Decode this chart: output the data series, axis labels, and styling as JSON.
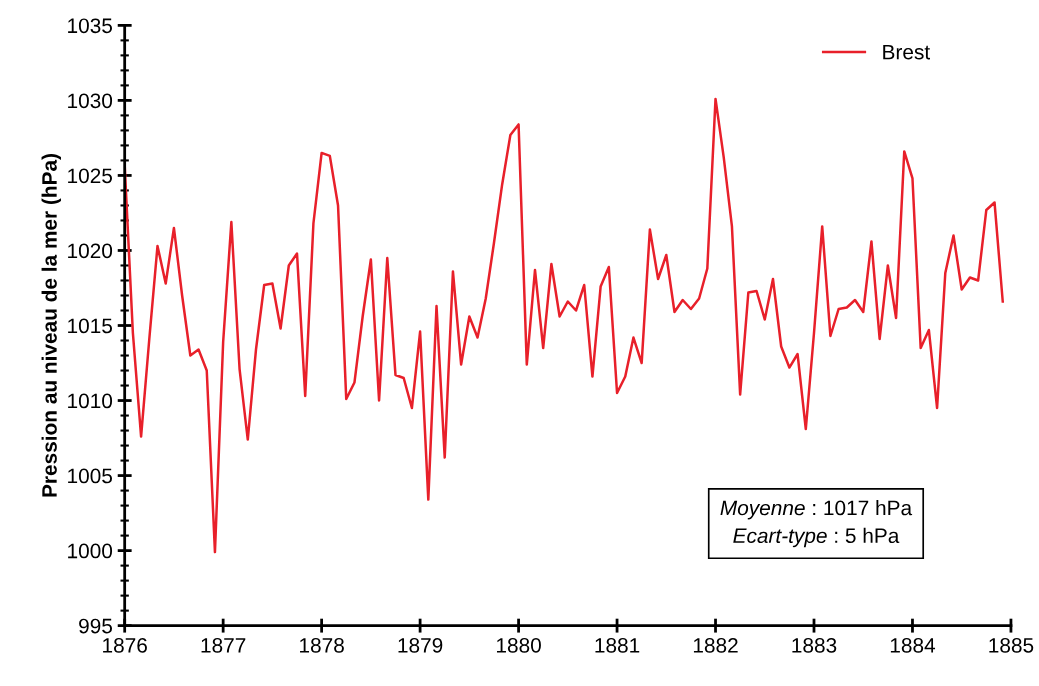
{
  "chart_data": {
    "type": "line",
    "ylabel": "Pression au niveau de la mer (hPa)",
    "x": [
      "1876-01",
      "1876-02",
      "1876-03",
      "1876-04",
      "1876-05",
      "1876-06",
      "1876-07",
      "1876-08",
      "1876-09",
      "1876-10",
      "1876-11",
      "1876-12",
      "1877-01",
      "1877-02",
      "1877-03",
      "1877-04",
      "1877-05",
      "1877-06",
      "1877-07",
      "1877-08",
      "1877-09",
      "1877-10",
      "1877-11",
      "1877-12",
      "1878-01",
      "1878-02",
      "1878-03",
      "1878-04",
      "1878-05",
      "1878-06",
      "1878-07",
      "1878-08",
      "1878-09",
      "1878-10",
      "1878-11",
      "1878-12",
      "1879-01",
      "1879-02",
      "1879-03",
      "1879-04",
      "1879-05",
      "1879-06",
      "1879-07",
      "1879-08",
      "1879-09",
      "1879-10",
      "1879-11",
      "1879-12",
      "1880-01",
      "1880-02",
      "1880-03",
      "1880-04",
      "1880-05",
      "1880-06",
      "1880-07",
      "1880-08",
      "1880-09",
      "1880-10",
      "1880-11",
      "1880-12",
      "1881-01",
      "1881-02",
      "1881-03",
      "1881-04",
      "1881-05",
      "1881-06",
      "1881-07",
      "1881-08",
      "1881-09",
      "1881-10",
      "1881-11",
      "1881-12",
      "1882-01",
      "1882-02",
      "1882-03",
      "1882-04",
      "1882-05",
      "1882-06",
      "1882-07",
      "1882-08",
      "1882-09",
      "1882-10",
      "1882-11",
      "1882-12",
      "1883-01",
      "1883-02",
      "1883-03",
      "1883-04",
      "1883-05",
      "1883-06",
      "1883-07",
      "1883-08",
      "1883-09",
      "1883-10",
      "1883-11",
      "1883-12",
      "1884-01",
      "1884-02",
      "1884-03",
      "1884-04",
      "1884-05",
      "1884-06",
      "1884-07",
      "1884-08",
      "1884-09",
      "1884-10",
      "1884-11",
      "1884-12"
    ],
    "series": [
      {
        "name": "Brest",
        "color": "#e8202a",
        "values": [
          1025.7,
          1014.5,
          1007.6,
          1014.1,
          1020.3,
          1017.8,
          1021.5,
          1017.0,
          1013.0,
          1013.4,
          1012.0,
          999.9,
          1013.9,
          1021.9,
          1012.1,
          1007.4,
          1013.4,
          1017.7,
          1017.8,
          1014.8,
          1019.0,
          1019.8,
          1010.3,
          1021.8,
          1026.5,
          1026.3,
          1023.0,
          1010.1,
          1011.2,
          1015.6,
          1019.4,
          1010.0,
          1019.5,
          1011.7,
          1011.5,
          1009.5,
          1014.6,
          1003.4,
          1016.3,
          1006.2,
          1018.6,
          1012.4,
          1015.6,
          1014.2,
          1016.8,
          1020.5,
          1024.4,
          1027.7,
          1028.4,
          1012.4,
          1018.7,
          1013.5,
          1019.1,
          1015.6,
          1016.6,
          1016.0,
          1017.7,
          1011.6,
          1017.6,
          1018.9,
          1010.5,
          1011.6,
          1014.2,
          1012.5,
          1021.4,
          1018.1,
          1019.7,
          1015.9,
          1016.7,
          1016.1,
          1016.8,
          1018.8,
          1030.1,
          1026.2,
          1021.6,
          1010.4,
          1017.2,
          1017.3,
          1015.4,
          1018.1,
          1013.6,
          1012.2,
          1013.1,
          1008.1,
          1014.5,
          1021.6,
          1014.3,
          1016.1,
          1016.2,
          1016.7,
          1015.9,
          1020.6,
          1014.1,
          1019.0,
          1015.5,
          1026.6,
          1024.8,
          1013.5,
          1014.7,
          1009.5,
          1018.5,
          1021.0,
          1017.4,
          1018.2,
          1018.0,
          1022.7,
          1023.2,
          1016.6
        ]
      }
    ],
    "xlim": [
      "1876",
      "1885"
    ],
    "xticks": [
      "1876",
      "1877",
      "1878",
      "1879",
      "1880",
      "1881",
      "1882",
      "1883",
      "1884",
      "1885"
    ],
    "ylim": [
      995,
      1035
    ],
    "yticks": [
      995,
      1000,
      1005,
      1010,
      1015,
      1020,
      1025,
      1030,
      1035
    ],
    "grid": false,
    "legend": "top right",
    "marker": "none",
    "line_style": "solid",
    "annotations": [
      "Moyenne : 1017 hPa",
      "Ecart-type : 5 hPa"
    ]
  }
}
